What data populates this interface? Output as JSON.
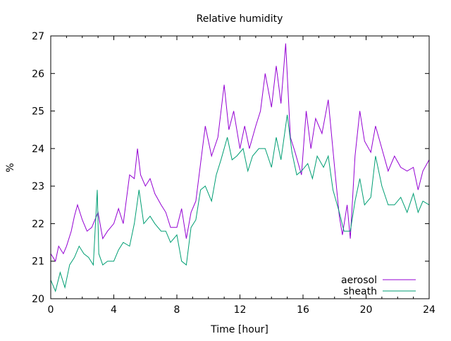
{
  "chart_data": {
    "type": "line",
    "title": "Relative humidity",
    "xlabel": "Time [hour]",
    "ylabel": "%",
    "xlim": [
      0,
      24
    ],
    "ylim": [
      20,
      27
    ],
    "xticks": [
      0,
      4,
      8,
      12,
      16,
      20,
      24
    ],
    "xtick_labels": [
      "0",
      "4",
      "8",
      "12",
      "16",
      "20",
      "24"
    ],
    "yticks": [
      20,
      21,
      22,
      23,
      24,
      25,
      26,
      27
    ],
    "ytick_labels": [
      "20",
      "21",
      "22",
      "23",
      "24",
      "25",
      "26",
      "27"
    ],
    "grid": false,
    "legend_position": "bottom-right",
    "series": [
      {
        "name": "aerosol",
        "color": "#9400d3",
        "x": [
          0,
          0.3,
          0.5,
          0.8,
          1.0,
          1.3,
          1.5,
          1.7,
          2.0,
          2.3,
          2.6,
          3.0,
          3.3,
          3.6,
          4.0,
          4.3,
          4.6,
          5.0,
          5.3,
          5.5,
          5.7,
          6.0,
          6.3,
          6.6,
          7.0,
          7.3,
          7.6,
          8.0,
          8.3,
          8.6,
          8.9,
          9.2,
          9.5,
          9.8,
          10.2,
          10.6,
          11.0,
          11.3,
          11.6,
          12.0,
          12.3,
          12.6,
          13.0,
          13.3,
          13.6,
          14.0,
          14.3,
          14.6,
          14.9,
          15.2,
          15.5,
          15.9,
          16.2,
          16.5,
          16.8,
          17.2,
          17.6,
          18.0,
          18.3,
          18.5,
          18.8,
          19.0,
          19.3,
          19.6,
          19.9,
          20.3,
          20.6,
          21.0,
          21.4,
          21.8,
          22.2,
          22.6,
          23.0,
          23.3,
          23.6,
          24.0
        ],
        "y": [
          21.2,
          21.0,
          21.4,
          21.2,
          21.4,
          21.8,
          22.2,
          22.5,
          22.1,
          21.8,
          21.9,
          22.3,
          21.6,
          21.8,
          22.0,
          22.4,
          22.0,
          23.3,
          23.2,
          24.0,
          23.3,
          23.0,
          23.2,
          22.8,
          22.5,
          22.3,
          21.9,
          21.9,
          22.4,
          21.6,
          22.3,
          22.6,
          23.6,
          24.6,
          23.8,
          24.3,
          25.7,
          24.5,
          25.0,
          24.0,
          24.6,
          24.0,
          24.6,
          25.0,
          26.0,
          25.1,
          26.2,
          25.2,
          26.8,
          24.3,
          23.9,
          23.3,
          25.0,
          24.0,
          24.8,
          24.4,
          25.3,
          23.5,
          22.2,
          21.7,
          22.5,
          21.6,
          23.8,
          25.0,
          24.2,
          23.9,
          24.6,
          24.0,
          23.4,
          23.8,
          23.5,
          23.4,
          23.5,
          22.9,
          23.4,
          23.7
        ]
      },
      {
        "name": "sheath",
        "color": "#009e73",
        "x": [
          0,
          0.3,
          0.6,
          0.9,
          1.2,
          1.5,
          1.8,
          2.1,
          2.4,
          2.7,
          2.95,
          3.05,
          3.3,
          3.6,
          4.0,
          4.3,
          4.6,
          5.0,
          5.3,
          5.6,
          5.9,
          6.3,
          6.6,
          7.0,
          7.3,
          7.6,
          8.0,
          8.3,
          8.6,
          8.9,
          9.2,
          9.5,
          9.8,
          10.2,
          10.5,
          10.8,
          11.2,
          11.5,
          11.8,
          12.2,
          12.5,
          12.8,
          13.2,
          13.6,
          14.0,
          14.3,
          14.6,
          15.0,
          15.3,
          15.6,
          15.9,
          16.3,
          16.6,
          16.9,
          17.3,
          17.6,
          17.9,
          18.3,
          18.6,
          19.0,
          19.3,
          19.6,
          19.9,
          20.3,
          20.6,
          21.0,
          21.4,
          21.8,
          22.2,
          22.6,
          23.0,
          23.3,
          23.6,
          24.0
        ],
        "y": [
          20.5,
          20.2,
          20.7,
          20.3,
          20.9,
          21.1,
          21.4,
          21.2,
          21.1,
          20.9,
          22.9,
          21.2,
          20.9,
          21.0,
          21.0,
          21.3,
          21.5,
          21.4,
          22.0,
          22.9,
          22.0,
          22.2,
          22.0,
          21.8,
          21.8,
          21.5,
          21.7,
          21.0,
          20.9,
          21.9,
          22.1,
          22.9,
          23.0,
          22.6,
          23.3,
          23.7,
          24.3,
          23.7,
          23.8,
          24.0,
          23.4,
          23.8,
          24.0,
          24.0,
          23.5,
          24.3,
          23.7,
          24.9,
          23.9,
          23.3,
          23.4,
          23.6,
          23.2,
          23.8,
          23.5,
          23.8,
          22.9,
          22.3,
          21.8,
          21.8,
          22.6,
          23.2,
          22.5,
          22.7,
          23.8,
          23.0,
          22.5,
          22.5,
          22.7,
          22.3,
          22.8,
          22.3,
          22.6,
          22.5
        ]
      }
    ]
  }
}
